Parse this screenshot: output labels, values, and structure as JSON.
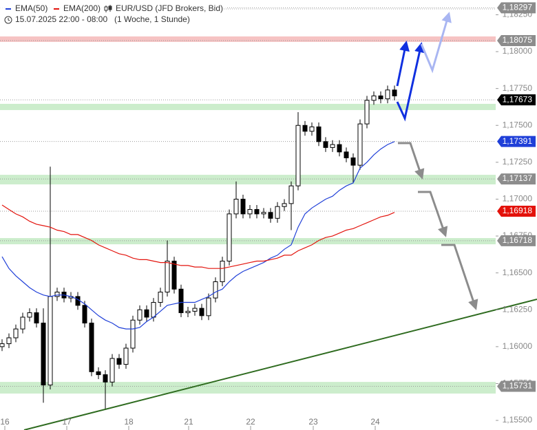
{
  "chart_data": {
    "type": "candlestick",
    "title": "EUR/USD (JFD Brokers, Bid)",
    "subtitle": "15.07.2025 22:00 - 08:00",
    "period": "(1 Woche, 1 Stunde)",
    "candles": {
      "open": [
        1.16,
        1.1602,
        1.1606,
        1.1612,
        1.162,
        1.1623,
        1.1616,
        1.1574,
        1.1634,
        1.1637,
        1.1633,
        1.1634,
        1.1628,
        1.1616,
        1.1583,
        1.1581,
        1.1576,
        1.1592,
        1.1588,
        1.1599,
        1.1618,
        1.1625,
        1.162,
        1.163,
        1.1637,
        1.1658,
        1.1639,
        1.1623,
        1.1624,
        1.1626,
        1.1621,
        1.1633,
        1.1644,
        1.1658,
        1.169,
        1.17,
        1.169,
        1.1693,
        1.169,
        1.1691,
        1.1687,
        1.1695,
        1.1697,
        1.1709,
        1.175,
        1.1746,
        1.1749,
        1.1739,
        1.1735,
        1.1737,
        1.1732,
        1.1728,
        1.1723,
        1.1751,
        1.1767,
        1.177,
        1.1768,
        1.1774
      ],
      "high": [
        1.1605,
        1.1609,
        1.1615,
        1.1623,
        1.1626,
        1.1626,
        1.1626,
        1.1722,
        1.164,
        1.164,
        1.1637,
        1.1637,
        1.1631,
        1.1619,
        1.1586,
        1.1584,
        1.1595,
        1.1595,
        1.1602,
        1.1621,
        1.1628,
        1.1628,
        1.1633,
        1.164,
        1.1672,
        1.1661,
        1.1642,
        1.1627,
        1.1629,
        1.1629,
        1.1636,
        1.1647,
        1.1661,
        1.1693,
        1.1712,
        1.1703,
        1.1696,
        1.1696,
        1.1694,
        1.1694,
        1.1698,
        1.17,
        1.1712,
        1.1759,
        1.1753,
        1.1752,
        1.1752,
        1.1742,
        1.174,
        1.174,
        1.1735,
        1.1731,
        1.1754,
        1.177,
        1.1773,
        1.1773,
        1.1777,
        1.1777
      ],
      "low": [
        1.1597,
        1.1599,
        1.1603,
        1.1609,
        1.1617,
        1.1613,
        1.1562,
        1.1571,
        1.1631,
        1.163,
        1.163,
        1.1625,
        1.1613,
        1.158,
        1.1578,
        1.1557,
        1.1573,
        1.1585,
        1.1585,
        1.1596,
        1.1615,
        1.1617,
        1.1617,
        1.1627,
        1.1634,
        1.1636,
        1.162,
        1.162,
        1.1621,
        1.1618,
        1.1618,
        1.163,
        1.1641,
        1.1655,
        1.1687,
        1.1687,
        1.1687,
        1.1687,
        1.1687,
        1.1684,
        1.1684,
        1.1692,
        1.1679,
        1.1706,
        1.1743,
        1.1743,
        1.1736,
        1.1732,
        1.1732,
        1.1729,
        1.1725,
        1.1711,
        1.172,
        1.1748,
        1.1764,
        1.1765,
        1.1765,
        1.1767
      ],
      "close": [
        1.1602,
        1.1606,
        1.1612,
        1.162,
        1.1623,
        1.1616,
        1.1574,
        1.1634,
        1.1637,
        1.1633,
        1.1634,
        1.1628,
        1.1616,
        1.1583,
        1.1581,
        1.1576,
        1.1592,
        1.1588,
        1.1599,
        1.1618,
        1.1625,
        1.162,
        1.163,
        1.1637,
        1.1658,
        1.1639,
        1.1623,
        1.1624,
        1.1626,
        1.1621,
        1.1633,
        1.1644,
        1.1658,
        1.169,
        1.17,
        1.169,
        1.1693,
        1.169,
        1.1691,
        1.1687,
        1.1695,
        1.1697,
        1.1709,
        1.175,
        1.1746,
        1.1749,
        1.1739,
        1.1735,
        1.1737,
        1.1732,
        1.1728,
        1.1723,
        1.1751,
        1.1767,
        1.177,
        1.1768,
        1.1774,
        1.177
      ]
    },
    "up_color": "#ffffff",
    "down_color": "#000000",
    "series": [
      {
        "name": "EMA(50)",
        "color": "#1f3fd8",
        "values": [
          1.1661,
          1.1653,
          1.1648,
          1.1644,
          1.164,
          1.1637,
          1.1635,
          1.1634,
          1.1635,
          1.1635,
          1.1634,
          1.1632,
          1.1629,
          1.1625,
          1.1621,
          1.1618,
          1.1616,
          1.1613,
          1.1612,
          1.1612,
          1.1613,
          1.1617,
          1.162,
          1.1624,
          1.1628,
          1.1629,
          1.163,
          1.163,
          1.163,
          1.1632,
          1.1634,
          1.1637,
          1.1639,
          1.1644,
          1.1648,
          1.1651,
          1.1653,
          1.1655,
          1.1657,
          1.166,
          1.1662,
          1.1666,
          1.1669,
          1.1681,
          1.169,
          1.1694,
          1.1697,
          1.17,
          1.1702,
          1.1706,
          1.1709,
          1.1711,
          1.1721,
          1.1725,
          1.173,
          1.1734,
          1.1737,
          1.1739
        ]
      },
      {
        "name": "EMA(200)",
        "color": "#e3120b",
        "values": [
          1.1696,
          1.1693,
          1.169,
          1.1688,
          1.1685,
          1.1683,
          1.1682,
          1.1681,
          1.1679,
          1.1678,
          1.1676,
          1.1676,
          1.1674,
          1.1672,
          1.1669,
          1.1667,
          1.1665,
          1.1663,
          1.1662,
          1.166,
          1.1659,
          1.1659,
          1.1658,
          1.1657,
          1.1657,
          1.1656,
          1.1655,
          1.1655,
          1.1654,
          1.1654,
          1.1653,
          1.1653,
          1.1653,
          1.1654,
          1.1655,
          1.1656,
          1.1657,
          1.1658,
          1.1658,
          1.1659,
          1.166,
          1.1662,
          1.1662,
          1.1665,
          1.1667,
          1.1669,
          1.1672,
          1.1674,
          1.1675,
          1.1677,
          1.1679,
          1.168,
          1.1682,
          1.1684,
          1.1686,
          1.1688,
          1.1689,
          1.1691
        ]
      }
    ],
    "xlim": [
      -0.3,
      71.7
    ],
    "xticks": [
      {
        "value": 0.4,
        "label": "16"
      },
      {
        "value": 9.4,
        "label": "17"
      },
      {
        "value": 18.4,
        "label": "18"
      },
      {
        "value": 27.1,
        "label": "21"
      },
      {
        "value": 36.1,
        "label": "22"
      },
      {
        "value": 45.2,
        "label": "23"
      },
      {
        "value": 54.2,
        "label": "24"
      }
    ],
    "ylim": [
      1.15435,
      1.1835
    ],
    "yticks": [
      {
        "value": 1.155,
        "label": "1,15500"
      },
      {
        "value": 1.1575,
        "label": "1,15750"
      },
      {
        "value": 1.16,
        "label": "1,16000"
      },
      {
        "value": 1.1625,
        "label": "1,16250"
      },
      {
        "value": 1.165,
        "label": "1,16500"
      },
      {
        "value": 1.1675,
        "label": "1,16750"
      },
      {
        "value": 1.17,
        "label": "1,17000"
      },
      {
        "value": 1.1725,
        "label": "1,17250"
      },
      {
        "value": 1.175,
        "label": "1,17500"
      },
      {
        "value": 1.1775,
        "label": "1,17750"
      },
      {
        "value": 1.18,
        "label": "1,18000"
      },
      {
        "value": 1.1825,
        "label": "1,18250"
      }
    ],
    "zones": [
      {
        "low": 1.18066,
        "high": 1.18103,
        "color": "#f4b4b4"
      },
      {
        "low": 1.17604,
        "high": 1.17646,
        "color": "#bfe8bf"
      },
      {
        "low": 1.171,
        "high": 1.17165,
        "color": "#bfe8bf"
      },
      {
        "low": 1.16694,
        "high": 1.16736,
        "color": "#bfe8bf"
      },
      {
        "low": 1.15682,
        "high": 1.15761,
        "color": "#bfe8bf"
      }
    ],
    "price_levels": [
      {
        "value": 1.18297,
        "label": "1,18297",
        "color": "#8c8c8c"
      },
      {
        "value": 1.18075,
        "label": "1,18075",
        "color": "#8c8c8c"
      },
      {
        "value": 1.17673,
        "label": "1,17673",
        "color": "#000000"
      },
      {
        "value": 1.17391,
        "label": "1,17391",
        "color": "#1f3fd8"
      },
      {
        "value": 1.17137,
        "label": "1,17137",
        "color": "#8c8c8c"
      },
      {
        "value": 1.16918,
        "label": "1,16918",
        "color": "#e3120b"
      },
      {
        "value": 1.16718,
        "label": "1,16718",
        "color": "#8c8c8c"
      },
      {
        "value": 1.15731,
        "label": "1,15731",
        "color": "#8c8c8c"
      }
    ]
  }
}
